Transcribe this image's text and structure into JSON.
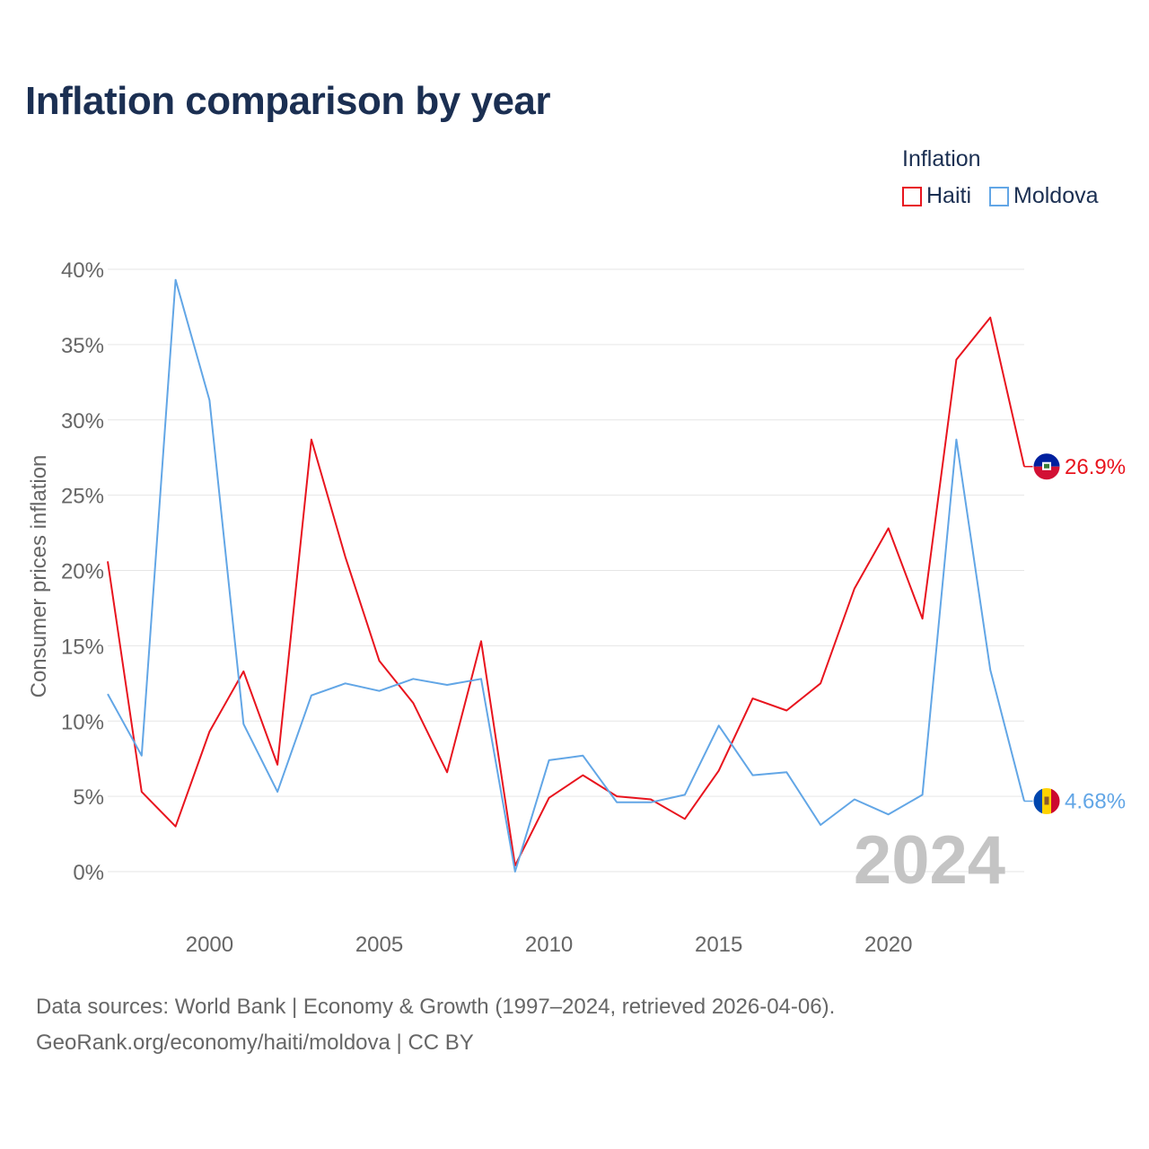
{
  "title": "Inflation comparison by year",
  "legend": {
    "title": "Inflation",
    "items": [
      {
        "name": "Haiti",
        "color": "#e8141e"
      },
      {
        "name": "Moldova",
        "color": "#62a6e6"
      }
    ]
  },
  "watermark_year": "2024",
  "source": {
    "line1": "Data sources: World Bank | Economy & Growth (1997–2024, retrieved 2026-04-06).",
    "line2": "GeoRank.org/economy/haiti/moldova | CC BY"
  },
  "chart_data": {
    "type": "line",
    "title": "Inflation comparison by year",
    "xlabel": "",
    "ylabel": "Consumer prices inflation",
    "xlim": [
      1997,
      2024
    ],
    "ylim": [
      0,
      40
    ],
    "x_ticks": [
      2000,
      2005,
      2010,
      2015,
      2020
    ],
    "y_ticks": [
      0,
      5,
      10,
      15,
      20,
      25,
      30,
      35,
      40
    ],
    "y_tick_labels": [
      "0%",
      "5%",
      "10%",
      "15%",
      "20%",
      "25%",
      "30%",
      "35%",
      "40%"
    ],
    "grid": true,
    "legend_position": "top-right",
    "x": [
      1997,
      1998,
      1999,
      2000,
      2001,
      2002,
      2003,
      2004,
      2005,
      2006,
      2007,
      2008,
      2009,
      2010,
      2011,
      2012,
      2013,
      2014,
      2015,
      2016,
      2017,
      2018,
      2019,
      2020,
      2021,
      2022,
      2023,
      2024
    ],
    "series": [
      {
        "name": "Haiti",
        "color": "#e8141e",
        "flag": "haiti-flag-icon",
        "end_label": "26.9%",
        "values": [
          20.6,
          5.3,
          3.0,
          9.3,
          13.3,
          7.1,
          28.7,
          20.9,
          14.0,
          11.2,
          6.6,
          15.3,
          0.4,
          4.9,
          6.4,
          5.0,
          4.8,
          3.5,
          6.7,
          11.5,
          10.7,
          12.5,
          18.8,
          22.8,
          16.8,
          34.0,
          36.8,
          26.9
        ]
      },
      {
        "name": "Moldova",
        "color": "#62a6e6",
        "flag": "moldova-flag-icon",
        "end_label": "4.68%",
        "values": [
          11.8,
          7.7,
          39.3,
          31.3,
          9.8,
          5.3,
          11.7,
          12.5,
          12.0,
          12.8,
          12.4,
          12.8,
          0.0,
          7.4,
          7.7,
          4.6,
          4.6,
          5.1,
          9.7,
          6.4,
          6.6,
          3.1,
          4.8,
          3.8,
          5.1,
          28.7,
          13.4,
          4.68
        ]
      }
    ]
  }
}
